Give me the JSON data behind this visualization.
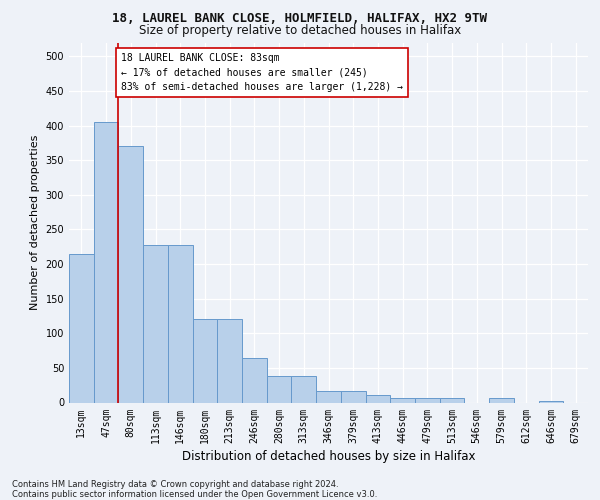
{
  "title1": "18, LAUREL BANK CLOSE, HOLMFIELD, HALIFAX, HX2 9TW",
  "title2": "Size of property relative to detached houses in Halifax",
  "xlabel": "Distribution of detached houses by size in Halifax",
  "ylabel": "Number of detached properties",
  "categories": [
    "13sqm",
    "47sqm",
    "80sqm",
    "113sqm",
    "146sqm",
    "180sqm",
    "213sqm",
    "246sqm",
    "280sqm",
    "313sqm",
    "346sqm",
    "379sqm",
    "413sqm",
    "446sqm",
    "479sqm",
    "513sqm",
    "546sqm",
    "579sqm",
    "612sqm",
    "646sqm",
    "679sqm"
  ],
  "values": [
    215,
    405,
    370,
    228,
    228,
    120,
    120,
    65,
    38,
    38,
    17,
    17,
    11,
    6,
    6,
    6,
    0,
    7,
    0,
    2,
    0
  ],
  "bar_color": "#b8d0ea",
  "bar_edge_color": "#6699cc",
  "vline_x": 1.5,
  "vline_color": "#cc0000",
  "annotation_text": "18 LAUREL BANK CLOSE: 83sqm\n← 17% of detached houses are smaller (245)\n83% of semi-detached houses are larger (1,228) →",
  "annotation_box_facecolor": "#ffffff",
  "annotation_box_edgecolor": "#cc0000",
  "ylim": [
    0,
    520
  ],
  "yticks": [
    0,
    50,
    100,
    150,
    200,
    250,
    300,
    350,
    400,
    450,
    500
  ],
  "footer1": "Contains HM Land Registry data © Crown copyright and database right 2024.",
  "footer2": "Contains public sector information licensed under the Open Government Licence v3.0.",
  "bg_color": "#eef2f8",
  "grid_color": "#ffffff",
  "title1_fontsize": 9,
  "title2_fontsize": 8.5,
  "ylabel_fontsize": 8,
  "xlabel_fontsize": 8.5,
  "tick_fontsize": 7,
  "footer_fontsize": 6,
  "annot_fontsize": 7
}
